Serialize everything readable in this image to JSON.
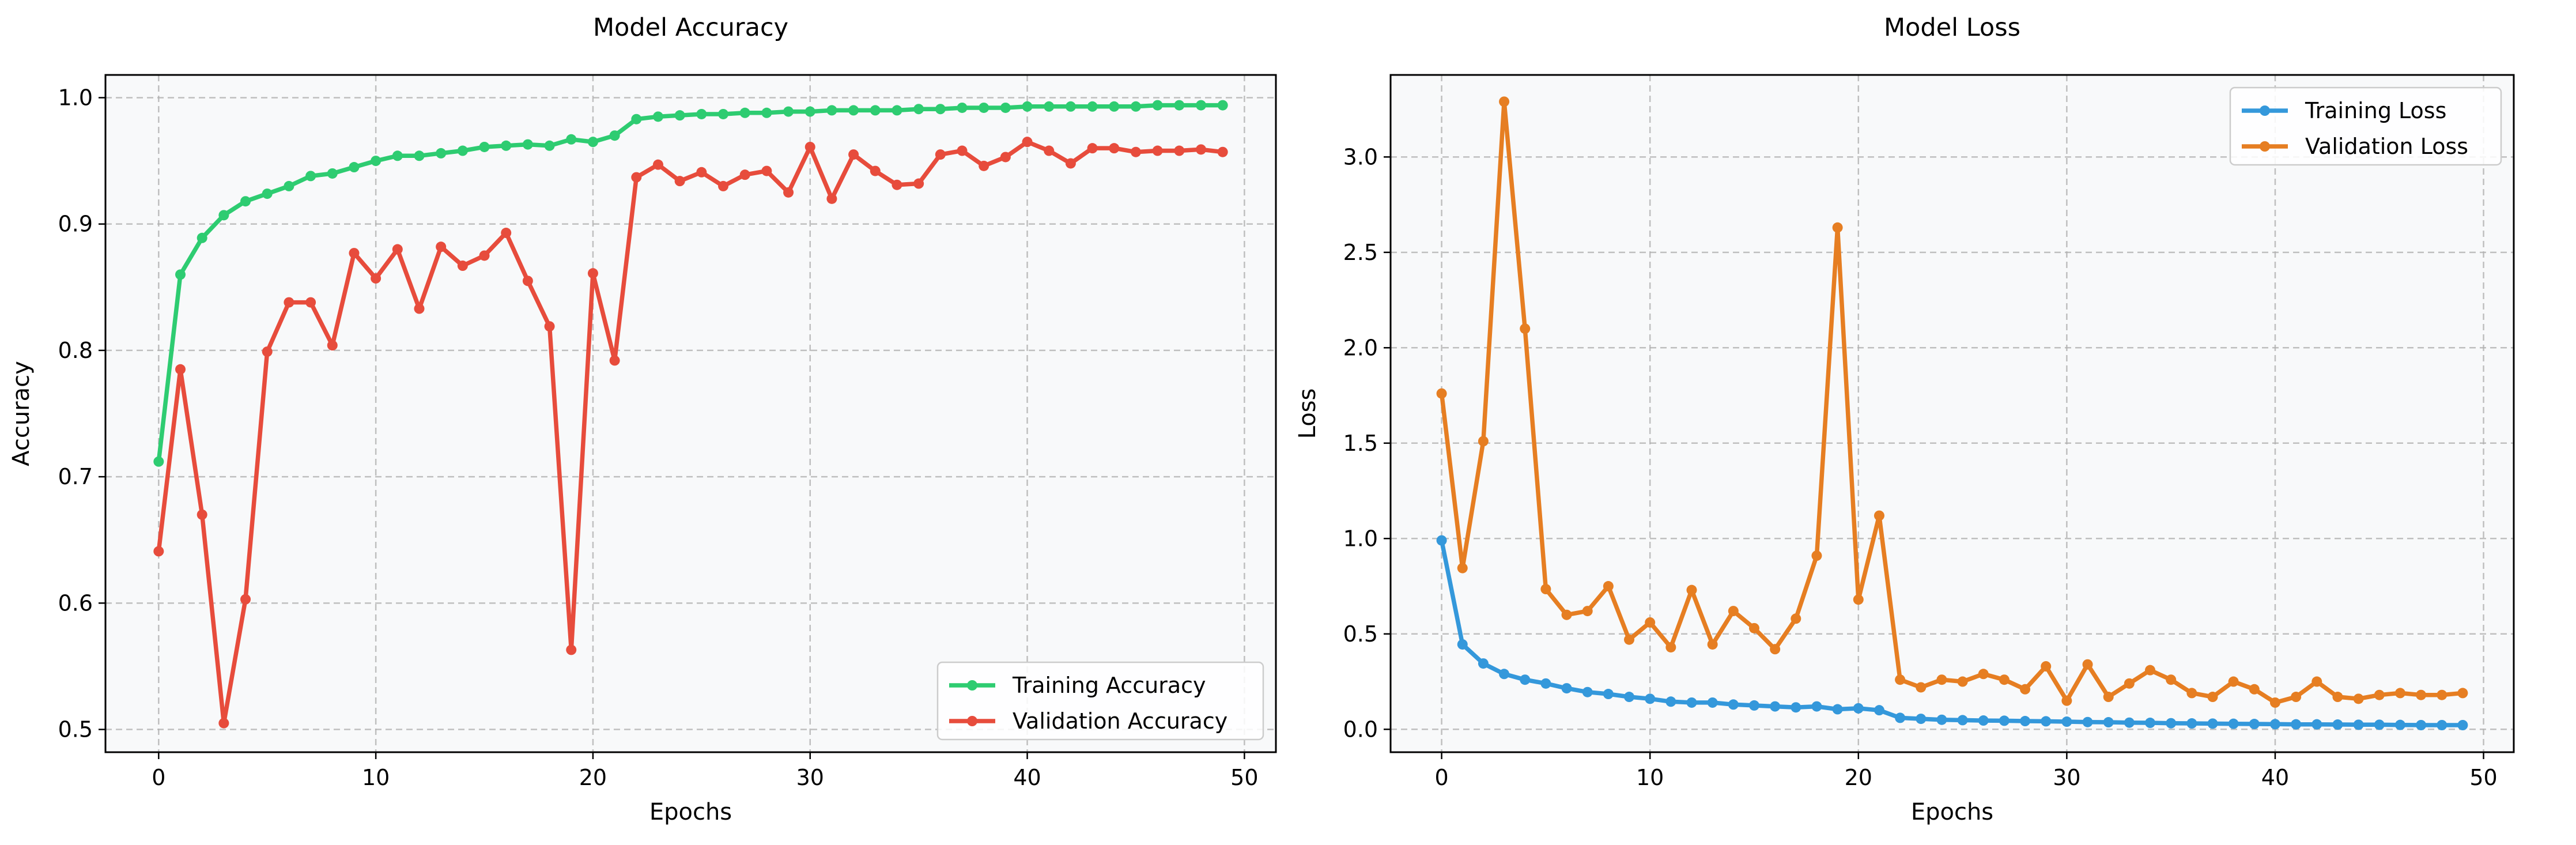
{
  "chart_data": [
    {
      "type": "line",
      "title": "Model Accuracy",
      "xlabel": "Epochs",
      "ylabel": "Accuracy",
      "xlim": [
        -2.45,
        51.45
      ],
      "ylim": [
        0.482,
        1.018
      ],
      "xticks": [
        0,
        10,
        20,
        30,
        40,
        50
      ],
      "yticks": [
        0.5,
        0.6,
        0.7,
        0.8,
        0.9,
        1.0
      ],
      "xtick_labels": [
        "0",
        "10",
        "20",
        "30",
        "40",
        "50"
      ],
      "ytick_labels": [
        "0.5",
        "0.6",
        "0.7",
        "0.8",
        "0.9",
        "1.0"
      ],
      "grid": true,
      "legend_position": "lower-right",
      "x": [
        0,
        1,
        2,
        3,
        4,
        5,
        6,
        7,
        8,
        9,
        10,
        11,
        12,
        13,
        14,
        15,
        16,
        17,
        18,
        19,
        20,
        21,
        22,
        23,
        24,
        25,
        26,
        27,
        28,
        29,
        30,
        31,
        32,
        33,
        34,
        35,
        36,
        37,
        38,
        39,
        40,
        41,
        42,
        43,
        44,
        45,
        46,
        47,
        48,
        49
      ],
      "series": [
        {
          "name": "Training Accuracy",
          "color": "#2ecc71",
          "values": [
            0.712,
            0.86,
            0.889,
            0.907,
            0.918,
            0.924,
            0.93,
            0.938,
            0.94,
            0.945,
            0.95,
            0.954,
            0.954,
            0.956,
            0.958,
            0.961,
            0.962,
            0.963,
            0.962,
            0.967,
            0.965,
            0.97,
            0.983,
            0.985,
            0.986,
            0.987,
            0.987,
            0.988,
            0.988,
            0.989,
            0.989,
            0.99,
            0.99,
            0.99,
            0.99,
            0.991,
            0.991,
            0.992,
            0.992,
            0.992,
            0.993,
            0.993,
            0.993,
            0.993,
            0.993,
            0.993,
            0.994,
            0.994,
            0.994,
            0.994
          ]
        },
        {
          "name": "Validation Accuracy",
          "color": "#e74c3c",
          "values": [
            0.641,
            0.785,
            0.67,
            0.505,
            0.603,
            0.799,
            0.838,
            0.838,
            0.804,
            0.877,
            0.857,
            0.88,
            0.833,
            0.882,
            0.867,
            0.875,
            0.893,
            0.855,
            0.819,
            0.563,
            0.861,
            0.792,
            0.937,
            0.947,
            0.934,
            0.941,
            0.93,
            0.939,
            0.942,
            0.925,
            0.961,
            0.92,
            0.955,
            0.942,
            0.931,
            0.932,
            0.955,
            0.958,
            0.946,
            0.953,
            0.965,
            0.958,
            0.948,
            0.96,
            0.96,
            0.957,
            0.958,
            0.958,
            0.959,
            0.957
          ]
        }
      ]
    },
    {
      "type": "line",
      "title": "Model Loss",
      "xlabel": "Epochs",
      "ylabel": "Loss",
      "xlim": [
        -2.45,
        51.45
      ],
      "ylim": [
        -0.12,
        3.43
      ],
      "xticks": [
        0,
        10,
        20,
        30,
        40,
        50
      ],
      "yticks": [
        0.0,
        0.5,
        1.0,
        1.5,
        2.0,
        2.5,
        3.0
      ],
      "xtick_labels": [
        "0",
        "10",
        "20",
        "30",
        "40",
        "50"
      ],
      "ytick_labels": [
        "0.0",
        "0.5",
        "1.0",
        "1.5",
        "2.0",
        "2.5",
        "3.0"
      ],
      "grid": true,
      "legend_position": "upper-right",
      "x": [
        0,
        1,
        2,
        3,
        4,
        5,
        6,
        7,
        8,
        9,
        10,
        11,
        12,
        13,
        14,
        15,
        16,
        17,
        18,
        19,
        20,
        21,
        22,
        23,
        24,
        25,
        26,
        27,
        28,
        29,
        30,
        31,
        32,
        33,
        34,
        35,
        36,
        37,
        38,
        39,
        40,
        41,
        42,
        43,
        44,
        45,
        46,
        47,
        48,
        49
      ],
      "series": [
        {
          "name": "Training Loss",
          "color": "#3498db",
          "values": [
            0.99,
            0.445,
            0.345,
            0.29,
            0.26,
            0.24,
            0.215,
            0.195,
            0.185,
            0.17,
            0.16,
            0.145,
            0.14,
            0.14,
            0.13,
            0.125,
            0.12,
            0.115,
            0.12,
            0.105,
            0.11,
            0.1,
            0.06,
            0.055,
            0.05,
            0.048,
            0.046,
            0.045,
            0.043,
            0.042,
            0.04,
            0.038,
            0.037,
            0.035,
            0.034,
            0.032,
            0.031,
            0.03,
            0.029,
            0.028,
            0.027,
            0.026,
            0.026,
            0.025,
            0.024,
            0.024,
            0.023,
            0.022,
            0.022,
            0.022
          ]
        },
        {
          "name": "Validation Loss",
          "color": "#e67e22",
          "values": [
            1.76,
            0.845,
            1.51,
            3.29,
            2.1,
            0.735,
            0.6,
            0.62,
            0.75,
            0.47,
            0.56,
            0.43,
            0.73,
            0.445,
            0.62,
            0.53,
            0.42,
            0.58,
            0.91,
            2.63,
            0.68,
            1.12,
            0.26,
            0.22,
            0.26,
            0.25,
            0.29,
            0.26,
            0.21,
            0.33,
            0.15,
            0.34,
            0.17,
            0.24,
            0.31,
            0.26,
            0.19,
            0.17,
            0.25,
            0.21,
            0.14,
            0.17,
            0.25,
            0.17,
            0.16,
            0.18,
            0.19,
            0.18,
            0.18,
            0.19
          ]
        }
      ]
    }
  ]
}
